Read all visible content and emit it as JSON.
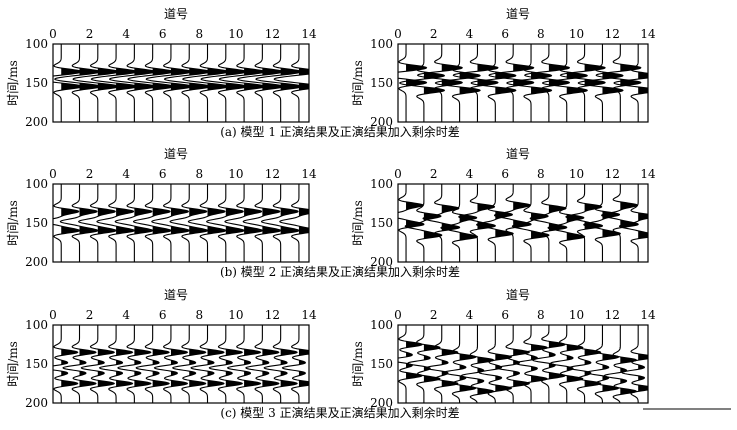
{
  "axis": {
    "x_title": "道号",
    "y_title": "时间/ms",
    "x_ticks": [
      "0",
      "2",
      "4",
      "6",
      "8",
      "10",
      "12",
      "14"
    ],
    "y_ticks": [
      "100",
      "150",
      "200"
    ],
    "x_range": [
      0,
      14
    ],
    "y_range": [
      100,
      200
    ]
  },
  "captions": [
    "(a) 模型 1 正演结果及正演结果加入剩余时差",
    "(b) 模型 2 正演结果及正演结果加入剩余时差",
    "(c) 模型 3 正演结果及正演结果加入剩余时差"
  ],
  "chart_data": [
    {
      "type": "wiggle",
      "panel": "a-left",
      "traces": 14,
      "events_ms": [
        135,
        145,
        155
      ],
      "residual_shift_ms": [
        0,
        0,
        0,
        0,
        0,
        0,
        0,
        0,
        0,
        0,
        0,
        0,
        0,
        0
      ]
    },
    {
      "type": "wiggle",
      "panel": "a-right",
      "traces": 14,
      "events_ms": [
        135,
        145,
        155
      ],
      "residual_shift_ms": [
        -5,
        5,
        -5,
        5,
        -5,
        5,
        -5,
        5,
        -5,
        5,
        -5,
        5,
        -5,
        5
      ]
    },
    {
      "type": "wiggle",
      "panel": "b-left",
      "traces": 14,
      "events_ms": [
        135,
        148,
        160
      ],
      "residual_shift_ms": [
        0,
        0,
        0,
        0,
        0,
        0,
        0,
        0,
        0,
        0,
        0,
        0,
        0,
        0
      ]
    },
    {
      "type": "wiggle",
      "panel": "b-right",
      "traces": 14,
      "events_ms": [
        135,
        148,
        160
      ],
      "residual_shift_ms": [
        -8,
        6,
        -4,
        8,
        -6,
        4,
        -8,
        6,
        -4,
        8,
        -6,
        4,
        -8,
        6
      ]
    },
    {
      "type": "wiggle",
      "panel": "c-left",
      "traces": 14,
      "events_ms": [
        135,
        155,
        175
      ],
      "residual_shift_ms": [
        0,
        0,
        0,
        0,
        0,
        0,
        0,
        0,
        0,
        0,
        0,
        0,
        0,
        0
      ]
    },
    {
      "type": "wiggle",
      "panel": "c-right",
      "traces": 14,
      "events_ms": [
        135,
        155,
        175
      ],
      "residual_shift_ms": [
        -10,
        -6,
        0,
        6,
        10,
        6,
        0,
        -6,
        -10,
        -6,
        0,
        6,
        10,
        6
      ]
    }
  ]
}
